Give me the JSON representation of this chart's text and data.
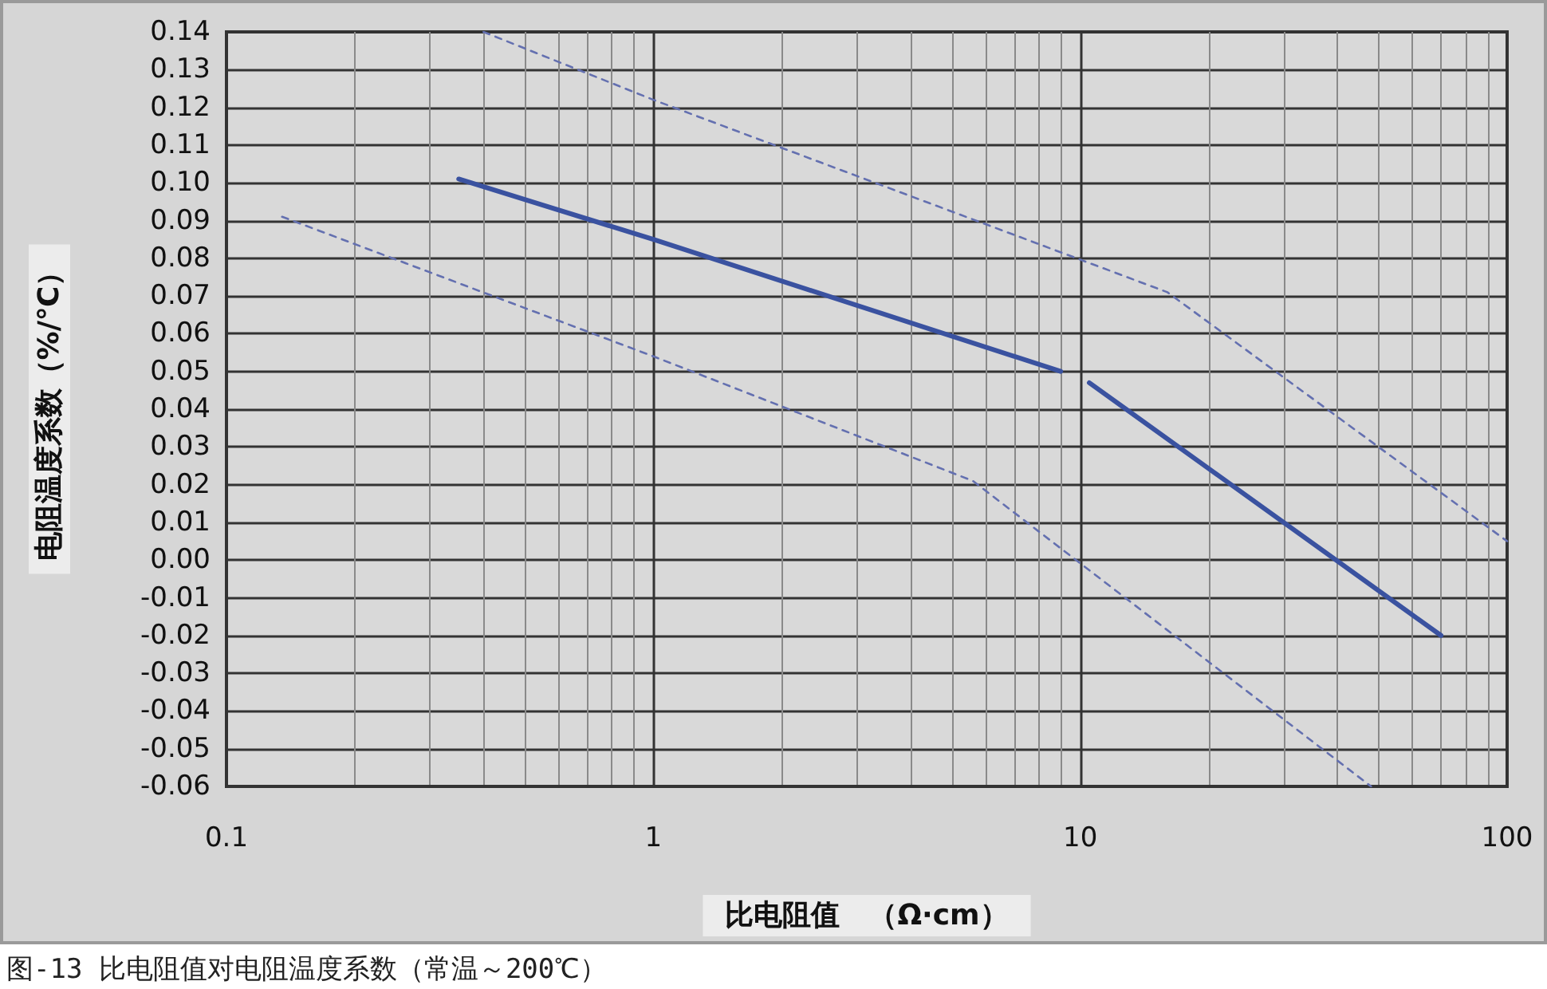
{
  "chart_data": {
    "type": "line",
    "xlabel": "比电阻值　（Ω·cm）",
    "ylabel": "电阻温度系数（%/℃）",
    "annotations": [
      "图-13 比电阻值对电阻温度系数（常温～200℃）"
    ],
    "log": "x",
    "xlim": [
      0.1,
      100
    ],
    "xticks": [
      0.1,
      1,
      10,
      100
    ],
    "ylim": [
      -0.06,
      0.14
    ],
    "yticks": [
      {
        "value": 0.14,
        "label": "0.14"
      },
      {
        "value": 0.13,
        "label": "0.13"
      },
      {
        "value": 0.12,
        "label": "0.12"
      },
      {
        "value": 0.11,
        "label": "0.11"
      },
      {
        "value": 0.1,
        "label": "0.10"
      },
      {
        "value": 0.09,
        "label": "0.09"
      },
      {
        "value": 0.08,
        "label": "0.08"
      },
      {
        "value": 0.07,
        "label": "0.07"
      },
      {
        "value": 0.06,
        "label": "0.06"
      },
      {
        "value": 0.05,
        "label": "0.05"
      },
      {
        "value": 0.04,
        "label": "0.04"
      },
      {
        "value": 0.03,
        "label": "0.03"
      },
      {
        "value": 0.02,
        "label": "0.02"
      },
      {
        "value": 0.01,
        "label": "0.01"
      },
      {
        "value": 0,
        "label": "0.00"
      },
      {
        "value": -0.01,
        "label": "-0.01"
      },
      {
        "value": -0.02,
        "label": "-0.02"
      },
      {
        "value": -0.03,
        "label": "-0.03"
      },
      {
        "value": -0.04,
        "label": "-0.04"
      },
      {
        "value": -0.05,
        "label": "-0.05"
      },
      {
        "value": -0.06,
        "label": "-0.06"
      }
    ],
    "grid": true,
    "marker": "none",
    "series": [
      {
        "color": "#3a52a0",
        "line_style": "solid",
        "x": [
          0.35,
          1,
          9
        ],
        "values": [
          0.101,
          0.085,
          0.05
        ]
      },
      {
        "color": "#3a52a0",
        "line_style": "solid",
        "x": [
          10.5,
          70
        ],
        "values": [
          0.047,
          -0.02
        ]
      },
      {
        "color": "#6470b0",
        "line_style": "dashed",
        "x": [
          0.4,
          1,
          16,
          100
        ],
        "values": [
          0.14,
          0.122,
          0.071,
          0.005
        ]
      },
      {
        "color": "#6470b0",
        "line_style": "dashed",
        "x": [
          0.135,
          1,
          5.6,
          48
        ],
        "values": [
          0.091,
          0.054,
          0.021,
          -0.06
        ]
      }
    ]
  }
}
